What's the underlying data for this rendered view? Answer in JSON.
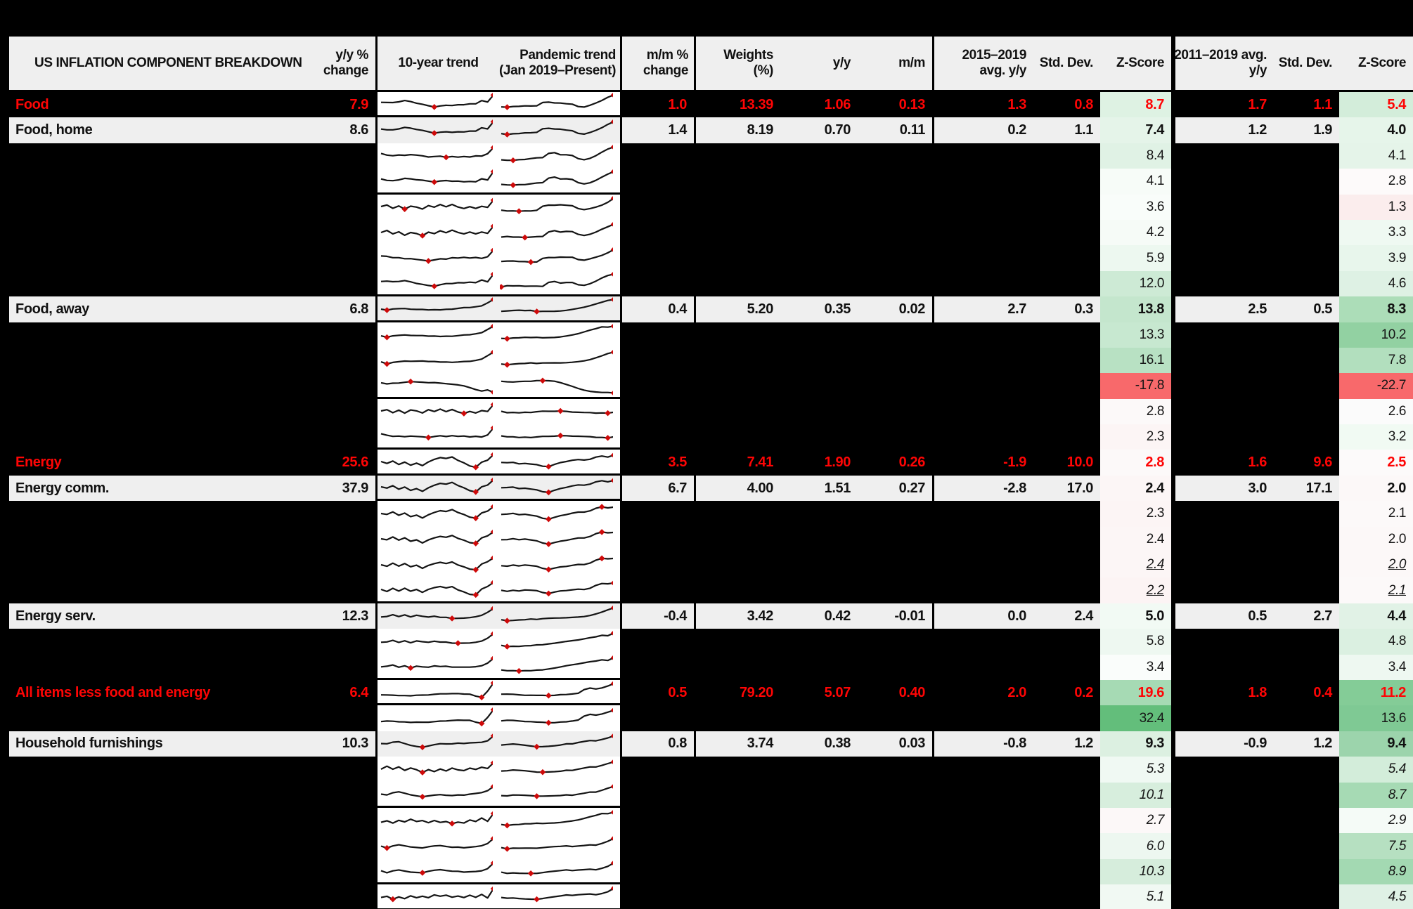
{
  "header": {
    "title": "US INFLATION COMPONENT BREAKDOWN",
    "col_yy": [
      "y/y %",
      "change"
    ],
    "col_trend10": "10-year trend",
    "col_pandemic": [
      "Pandemic trend",
      "(Jan 2019–Present)"
    ],
    "col_mm": [
      "m/m %",
      "change"
    ],
    "col_weights": [
      "Weights",
      "(%)"
    ],
    "col_yoy": "y/y",
    "col_mom": "m/m",
    "col_avg1": [
      "2015–2019",
      "avg. y/y"
    ],
    "col_sd1": "Std. Dev.",
    "col_z1": "Z-Score",
    "col_avg2": [
      "2011–2019 avg.",
      "y/y"
    ],
    "col_sd2": "Std. Dev.",
    "col_z2": "Z-Score"
  },
  "colors": {
    "row_grey": "#EFEFEF",
    "red_text": "#FE0505",
    "neg_cell": "#F8696B",
    "max_green": "#63BE7B",
    "spark_line": "#141414",
    "spark_marker": "#CE0A0A"
  },
  "chart_data": {
    "type": "table",
    "title": "US INFLATION COMPONENT BREAKDOWN",
    "columns": [
      "Component",
      "y/y % change",
      "10-year trend",
      "Pandemic trend (Jan 2019–Present)",
      "m/m % change",
      "Weights (%)",
      "y/y",
      "m/m",
      "2015–2019 avg. y/y",
      "Std. Dev.",
      "Z-Score",
      "2011–2019 avg. y/y",
      "Std. Dev.",
      "Z-Score"
    ],
    "rows": [
      {
        "label": "Food",
        "yy": "7.9",
        "mm": "1.0",
        "w": "13.39",
        "yoy": "1.06",
        "mom": "0.13",
        "a1": "1.3",
        "sd1": "0.8",
        "z1": "8.7",
        "z1bg": "#DEF2E3",
        "a2": "1.7",
        "sd2": "1.1",
        "z2": "5.4",
        "z2bg": "#D3EDDA",
        "type": "red",
        "s1": "A1",
        "s2": "P1",
        "ba": true
      },
      {
        "label": "Food, home",
        "yy": "8.6",
        "mm": "1.4",
        "w": "8.19",
        "yoy": "0.70",
        "mom": "0.11",
        "a1": "0.2",
        "sd1": "1.1",
        "z1": "7.4",
        "z1bg": "#E5F4E9",
        "a2": "1.2",
        "sd2": "1.9",
        "z2": "4.0",
        "z2bg": "#E6F5EA",
        "type": "named",
        "s1": "A1",
        "s2": "P1",
        "ba": false
      },
      {
        "label": "",
        "yy": "",
        "mm": "",
        "w": "",
        "yoy": "",
        "mom": "",
        "a1": "",
        "sd1": "",
        "z1": "8.4",
        "z1bg": "#E0F2E5",
        "a2": "",
        "sd2": "",
        "z2": "4.1",
        "z2bg": "#E5F4E9",
        "type": "hidden",
        "s1": "A2",
        "s2": "P2",
        "ba": false
      },
      {
        "label": "",
        "yy": "",
        "mm": "",
        "w": "",
        "yoy": "",
        "mom": "",
        "a1": "",
        "sd1": "",
        "z1": "4.1",
        "z1bg": "#F7FCF8",
        "a2": "",
        "sd2": "",
        "z2": "2.8",
        "z2bg": "#FDFAFA",
        "type": "hidden",
        "s1": "A1",
        "s2": "P2",
        "ba": true
      },
      {
        "label": "",
        "yy": "",
        "mm": "",
        "w": "",
        "yoy": "",
        "mom": "",
        "a1": "",
        "sd1": "",
        "z1": "3.6",
        "z1bg": "#F9FDFA",
        "a2": "",
        "sd2": "",
        "z2": "1.3",
        "z2bg": "#FBEDED",
        "type": "hidden",
        "s1": "V1",
        "s2": "P1",
        "ba": false
      },
      {
        "label": "",
        "yy": "",
        "mm": "",
        "w": "",
        "yoy": "",
        "mom": "",
        "a1": "",
        "sd1": "",
        "z1": "4.2",
        "z1bg": "#F6FBF7",
        "a2": "",
        "sd2": "",
        "z2": "3.3",
        "z2bg": "#EFF9F2",
        "type": "hidden",
        "s1": "V1",
        "s2": "P2",
        "ba": false
      },
      {
        "label": "",
        "yy": "",
        "mm": "",
        "w": "",
        "yoy": "",
        "mom": "",
        "a1": "",
        "sd1": "",
        "z1": "5.9",
        "z1bg": "#EDF8F0",
        "a2": "",
        "sd2": "",
        "z2": "3.9",
        "z2bg": "#E8F6EC",
        "type": "hidden",
        "s1": "A2",
        "s2": "P1",
        "ba": false
      },
      {
        "label": "",
        "yy": "",
        "mm": "",
        "w": "",
        "yoy": "",
        "mom": "",
        "a1": "",
        "sd1": "",
        "z1": "12.0",
        "z1bg": "#CDEAD5",
        "a2": "",
        "sd2": "",
        "z2": "4.6",
        "z2bg": "#DEF1E4",
        "type": "hidden",
        "s1": "A1",
        "s2": "P2",
        "ba": true
      },
      {
        "label": "Food, away",
        "yy": "6.8",
        "mm": "0.4",
        "w": "5.20",
        "yoy": "0.35",
        "mom": "0.02",
        "a1": "2.7",
        "sd1": "0.3",
        "z1": "13.8",
        "z1bg": "#C4E6CD",
        "a2": "2.5",
        "sd2": "0.5",
        "z2": "8.3",
        "z2bg": "#ACDDB8",
        "type": "named",
        "s1": "U1",
        "s2": "R1",
        "ba": true
      },
      {
        "label": "",
        "yy": "",
        "mm": "",
        "w": "",
        "yoy": "",
        "mom": "",
        "a1": "",
        "sd1": "",
        "z1": "13.3",
        "z1bg": "#C7E8D0",
        "a2": "",
        "sd2": "",
        "z2": "10.2",
        "z2bg": "#92D1A2",
        "type": "hidden",
        "s1": "U1",
        "s2": "R2",
        "ba": false
      },
      {
        "label": "",
        "yy": "",
        "mm": "",
        "w": "",
        "yoy": "",
        "mom": "",
        "a1": "",
        "sd1": "",
        "z1": "16.1",
        "z1bg": "#B8E1C3",
        "a2": "",
        "sd2": "",
        "z2": "7.8",
        "z2bg": "#B2DFBE",
        "type": "hidden",
        "s1": "U1",
        "s2": "R1",
        "ba": false
      },
      {
        "label": "",
        "yy": "",
        "mm": "",
        "w": "",
        "yoy": "",
        "mom": "",
        "a1": "",
        "sd1": "",
        "z1": "-17.8",
        "z1bg": "#F8696B",
        "a2": "",
        "sd2": "",
        "z2": "-22.7",
        "z2bg": "#F8696B",
        "type": "hidden",
        "s1": "D1",
        "s2": "D2",
        "ba": true
      },
      {
        "label": "",
        "yy": "",
        "mm": "",
        "w": "",
        "yoy": "",
        "mom": "",
        "a1": "",
        "sd1": "",
        "z1": "2.8",
        "z1bg": "#FCF9F9",
        "a2": "",
        "sd2": "",
        "z2": "2.6",
        "z2bg": "#FBFBFB",
        "type": "hidden",
        "s1": "V1",
        "s2": "F1",
        "ba": false
      },
      {
        "label": "",
        "yy": "",
        "mm": "",
        "w": "",
        "yoy": "",
        "mom": "",
        "a1": "",
        "sd1": "",
        "z1": "2.3",
        "z1bg": "#FCF5F5",
        "a2": "",
        "sd2": "",
        "z2": "3.2",
        "z2bg": "#F1FAF3",
        "type": "hidden",
        "s1": "A2",
        "s2": "F1",
        "ba": true
      },
      {
        "label": "Energy",
        "yy": "25.6",
        "mm": "3.5",
        "w": "7.41",
        "yoy": "1.90",
        "mom": "0.26",
        "a1": "-1.9",
        "sd1": "10.0",
        "z1": "2.8",
        "z1bg": "#FCF9F9",
        "a2": "1.6",
        "sd2": "9.6",
        "z2": "2.5",
        "z2bg": "#FCFAFA",
        "type": "red",
        "s1": "E1",
        "s2": "EP1",
        "ba": true
      },
      {
        "label": "Energy comm.",
        "yy": "37.9",
        "mm": "6.7",
        "w": "4.00",
        "yoy": "1.51",
        "mom": "0.27",
        "a1": "-2.8",
        "sd1": "17.0",
        "z1": "2.4",
        "z1bg": "#FCF6F6",
        "a2": "3.0",
        "sd2": "17.1",
        "z2": "2.0",
        "z2bg": "#FCF8F8",
        "type": "named",
        "s1": "E1",
        "s2": "EP1",
        "ba": true
      },
      {
        "label": "",
        "yy": "",
        "mm": "",
        "w": "",
        "yoy": "",
        "mom": "",
        "a1": "",
        "sd1": "",
        "z1": "2.3",
        "z1bg": "#FCF5F5",
        "a2": "",
        "sd2": "",
        "z2": "2.1",
        "z2bg": "#FCF9F9",
        "type": "hidden",
        "s1": "E1",
        "s2": "EP1",
        "ba": false
      },
      {
        "label": "",
        "yy": "",
        "mm": "",
        "w": "",
        "yoy": "",
        "mom": "",
        "a1": "",
        "sd1": "",
        "z1": "2.4",
        "z1bg": "#FCF6F6",
        "a2": "",
        "sd2": "",
        "z2": "2.0",
        "z2bg": "#FCF8F8",
        "type": "hidden",
        "s1": "E1",
        "s2": "EP1",
        "ba": false
      },
      {
        "label": "",
        "yy": "",
        "mm": "",
        "w": "",
        "yoy": "",
        "mom": "",
        "a1": "",
        "sd1": "",
        "z1": "2.4",
        "z1bg": "#FCF6F6",
        "a2": "",
        "sd2": "",
        "z2": "2.0",
        "z2bg": "#FCF8F8",
        "type": "hidden",
        "iu": true,
        "s1": "E1",
        "s2": "EP1",
        "ba": false
      },
      {
        "label": "",
        "yy": "",
        "mm": "",
        "w": "",
        "yoy": "",
        "mom": "",
        "a1": "",
        "sd1": "",
        "z1": "2.2",
        "z1bg": "#FCF4F4",
        "a2": "",
        "sd2": "",
        "z2": "2.1",
        "z2bg": "#FCF9F9",
        "type": "hidden",
        "iu": true,
        "s1": "E1",
        "s2": "EP1",
        "ba": true
      },
      {
        "label": "Energy serv.",
        "yy": "12.3",
        "mm": "-0.4",
        "w": "3.42",
        "yoy": "0.42",
        "mom": "-0.01",
        "a1": "0.0",
        "sd1": "2.4",
        "z1": "5.0",
        "z1bg": "#F2FAF4",
        "a2": "0.5",
        "sd2": "2.7",
        "z2": "4.4",
        "z2bg": "#E1F2E6",
        "type": "named",
        "s1": "S1",
        "s2": "R1",
        "ba": false
      },
      {
        "label": "",
        "yy": "",
        "mm": "",
        "w": "",
        "yoy": "",
        "mom": "",
        "a1": "",
        "sd1": "",
        "z1": "5.8",
        "z1bg": "#EEF8F1",
        "a2": "",
        "sd2": "",
        "z2": "4.8",
        "z2bg": "#DBF0E1",
        "type": "hidden",
        "s1": "S1",
        "s2": "R2",
        "ba": false
      },
      {
        "label": "",
        "yy": "",
        "mm": "",
        "w": "",
        "yoy": "",
        "mom": "",
        "a1": "",
        "sd1": "",
        "z1": "3.4",
        "z1bg": "#FAFDFB",
        "a2": "",
        "sd2": "",
        "z2": "3.4",
        "z2bg": "#EEF8F1",
        "type": "hidden",
        "s1": "S1",
        "s2": "R2",
        "ba": true
      },
      {
        "label": "All items less food and energy",
        "yy": "6.4",
        "mm": "0.5",
        "w": "79.20",
        "yoy": "5.07",
        "mom": "0.40",
        "a1": "2.0",
        "sd1": "0.2",
        "z1": "19.6",
        "z1bg": "#A6DAB4",
        "a2": "1.8",
        "sd2": "0.4",
        "z2": "11.2",
        "z2bg": "#84CC97",
        "type": "red",
        "s1": "FS1",
        "s2": "FSP1",
        "ba": true
      },
      {
        "label": "",
        "yy": "",
        "mm": "",
        "w": "",
        "yoy": "",
        "mom": "",
        "a1": "",
        "sd1": "",
        "z1": "32.4",
        "z1bg": "#63BE7B",
        "a2": "",
        "sd2": "",
        "z2": "13.6",
        "z2bg": "#7FC994",
        "type": "hidden",
        "s1": "FS1",
        "s2": "FSP1",
        "ba": false
      },
      {
        "label": "Household furnishings",
        "yy": "10.3",
        "mm": "0.8",
        "w": "3.74",
        "yoy": "0.38",
        "mom": "0.03",
        "a1": "-0.8",
        "sd1": "1.2",
        "z1": "9.3",
        "z1bg": "#DCF0E1",
        "a2": "-0.9",
        "sd2": "1.2",
        "z2": "9.4",
        "z2bg": "#9CD4AC",
        "type": "named",
        "s1": "H1",
        "s2": "HP1",
        "ba": false
      },
      {
        "label": "",
        "yy": "",
        "mm": "",
        "w": "",
        "yoy": "",
        "mom": "",
        "a1": "",
        "sd1": "",
        "z1": "5.3",
        "z1bg": "#F0F9F3",
        "a2": "",
        "sd2": "",
        "z2": "5.4",
        "z2bg": "#D3EDDA",
        "type": "hidden",
        "it": true,
        "s1": "V1",
        "s2": "HP1",
        "ba": false
      },
      {
        "label": "",
        "yy": "",
        "mm": "",
        "w": "",
        "yoy": "",
        "mom": "",
        "a1": "",
        "sd1": "",
        "z1": "10.1",
        "z1bg": "#D7EEDD",
        "a2": "",
        "sd2": "",
        "z2": "8.7",
        "z2bg": "#A6DAB4",
        "type": "hidden",
        "it": true,
        "s1": "H1",
        "s2": "HP1",
        "ba": true
      },
      {
        "label": "",
        "yy": "",
        "mm": "",
        "w": "",
        "yoy": "",
        "mom": "",
        "a1": "",
        "sd1": "",
        "z1": "2.7",
        "z1bg": "#FCF8F8",
        "a2": "",
        "sd2": "",
        "z2": "2.9",
        "z2bg": "#F5FBF7",
        "type": "hidden",
        "it": true,
        "s1": "W1",
        "s2": "R2",
        "ba": false
      },
      {
        "label": "",
        "yy": "",
        "mm": "",
        "w": "",
        "yoy": "",
        "mom": "",
        "a1": "",
        "sd1": "",
        "z1": "6.0",
        "z1bg": "#EDF7F0",
        "a2": "",
        "sd2": "",
        "z2": "7.5",
        "z2bg": "#B6E0C1",
        "type": "hidden",
        "it": true,
        "s1": "H1",
        "s2": "HP1",
        "ba": false
      },
      {
        "label": "",
        "yy": "",
        "mm": "",
        "w": "",
        "yoy": "",
        "mom": "",
        "a1": "",
        "sd1": "",
        "z1": "10.3",
        "z1bg": "#D6EDDC",
        "a2": "",
        "sd2": "",
        "z2": "8.9",
        "z2bg": "#A3D9B2",
        "type": "hidden",
        "it": true,
        "s1": "H1",
        "s2": "HP1",
        "ba": true
      },
      {
        "label": "",
        "yy": "",
        "mm": "",
        "w": "",
        "yoy": "",
        "mom": "",
        "a1": "",
        "sd1": "",
        "z1": "5.1",
        "z1bg": "#F1F9F3",
        "a2": "",
        "sd2": "",
        "z2": "4.5",
        "z2bg": "#DFF1E5",
        "type": "hidden",
        "it": true,
        "s1": "W1",
        "s2": "HP1",
        "ba": true
      }
    ],
    "sparklines": {
      "A1": [
        0.55,
        0.52,
        0.5,
        0.53,
        0.6,
        0.55,
        0.48,
        0.44,
        0.38,
        0.33,
        0.4,
        0.44,
        0.42,
        0.45,
        0.43,
        0.46,
        0.44,
        0.6,
        0.52,
        0.95
      ],
      "A2": [
        0.6,
        0.55,
        0.5,
        0.52,
        0.48,
        0.5,
        0.46,
        0.42,
        0.36,
        0.4,
        0.44,
        0.4,
        0.46,
        0.44,
        0.48,
        0.45,
        0.5,
        0.47,
        0.58,
        0.92
      ],
      "P1": [
        0.3,
        0.28,
        0.3,
        0.29,
        0.31,
        0.3,
        0.32,
        0.52,
        0.56,
        0.54,
        0.55,
        0.52,
        0.5,
        0.36,
        0.32,
        0.4,
        0.5,
        0.62,
        0.78,
        0.95
      ],
      "P2": [
        0.25,
        0.27,
        0.26,
        0.28,
        0.27,
        0.3,
        0.32,
        0.32,
        0.55,
        0.6,
        0.5,
        0.52,
        0.5,
        0.35,
        0.3,
        0.38,
        0.52,
        0.7,
        0.85,
        0.95
      ],
      "V1": [
        0.5,
        0.62,
        0.45,
        0.58,
        0.4,
        0.55,
        0.48,
        0.35,
        0.52,
        0.42,
        0.56,
        0.44,
        0.58,
        0.46,
        0.4,
        0.52,
        0.44,
        0.56,
        0.5,
        0.85
      ],
      "U1": [
        0.42,
        0.32,
        0.38,
        0.4,
        0.42,
        0.4,
        0.41,
        0.43,
        0.42,
        0.44,
        0.43,
        0.45,
        0.44,
        0.46,
        0.48,
        0.47,
        0.5,
        0.55,
        0.72,
        0.95
      ],
      "R1": [
        0.3,
        0.29,
        0.3,
        0.31,
        0.3,
        0.32,
        0.28,
        0.31,
        0.33,
        0.35,
        0.37,
        0.4,
        0.44,
        0.48,
        0.52,
        0.58,
        0.66,
        0.75,
        0.85,
        0.95
      ],
      "R2": [
        0.28,
        0.26,
        0.28,
        0.27,
        0.29,
        0.28,
        0.3,
        0.29,
        0.32,
        0.35,
        0.4,
        0.46,
        0.52,
        0.58,
        0.66,
        0.74,
        0.8,
        0.88,
        0.85,
        0.95
      ],
      "D1": [
        0.62,
        0.6,
        0.62,
        0.61,
        0.63,
        0.65,
        0.62,
        0.6,
        0.58,
        0.6,
        0.59,
        0.58,
        0.57,
        0.55,
        0.5,
        0.4,
        0.28,
        0.18,
        0.22,
        0.1
      ],
      "D2": [
        0.7,
        0.72,
        0.7,
        0.71,
        0.7,
        0.68,
        0.7,
        0.69,
        0.68,
        0.66,
        0.6,
        0.52,
        0.44,
        0.34,
        0.26,
        0.2,
        0.16,
        0.12,
        0.1,
        0.06
      ],
      "F1": [
        0.48,
        0.45,
        0.47,
        0.44,
        0.46,
        0.43,
        0.45,
        0.46,
        0.44,
        0.43,
        0.45,
        0.44,
        0.42,
        0.43,
        0.44,
        0.45,
        0.43,
        0.44,
        0.42,
        0.43
      ],
      "E1": [
        0.5,
        0.4,
        0.55,
        0.38,
        0.52,
        0.35,
        0.45,
        0.3,
        0.48,
        0.6,
        0.68,
        0.62,
        0.7,
        0.52,
        0.4,
        0.25,
        0.2,
        0.5,
        0.62,
        0.88
      ],
      "EP1": [
        0.45,
        0.42,
        0.46,
        0.4,
        0.44,
        0.41,
        0.38,
        0.28,
        0.24,
        0.34,
        0.42,
        0.46,
        0.52,
        0.56,
        0.54,
        0.6,
        0.74,
        0.82,
        0.78,
        0.85
      ],
      "S1": [
        0.45,
        0.52,
        0.6,
        0.48,
        0.55,
        0.42,
        0.5,
        0.44,
        0.4,
        0.46,
        0.42,
        0.44,
        0.4,
        0.42,
        0.44,
        0.46,
        0.5,
        0.56,
        0.7,
        0.92
      ],
      "FS1": [
        0.3,
        0.3,
        0.31,
        0.3,
        0.31,
        0.3,
        0.32,
        0.31,
        0.3,
        0.31,
        0.32,
        0.31,
        0.32,
        0.33,
        0.32,
        0.33,
        0.25,
        0.2,
        0.55,
        0.95
      ],
      "FSP1": [
        0.34,
        0.33,
        0.34,
        0.33,
        0.32,
        0.33,
        0.32,
        0.31,
        0.28,
        0.27,
        0.29,
        0.28,
        0.3,
        0.34,
        0.55,
        0.65,
        0.62,
        0.7,
        0.82,
        0.92
      ],
      "H1": [
        0.48,
        0.42,
        0.52,
        0.56,
        0.48,
        0.4,
        0.36,
        0.33,
        0.4,
        0.46,
        0.5,
        0.47,
        0.45,
        0.47,
        0.44,
        0.47,
        0.49,
        0.52,
        0.62,
        0.9
      ],
      "HP1": [
        0.4,
        0.38,
        0.41,
        0.39,
        0.37,
        0.35,
        0.33,
        0.35,
        0.38,
        0.41,
        0.44,
        0.49,
        0.47,
        0.52,
        0.56,
        0.6,
        0.58,
        0.66,
        0.76,
        0.9
      ],
      "W1": [
        0.4,
        0.5,
        0.35,
        0.48,
        0.38,
        0.52,
        0.4,
        0.46,
        0.36,
        0.5,
        0.42,
        0.48,
        0.38,
        0.46,
        0.4,
        0.55,
        0.45,
        0.62,
        0.42,
        0.88
      ]
    }
  }
}
